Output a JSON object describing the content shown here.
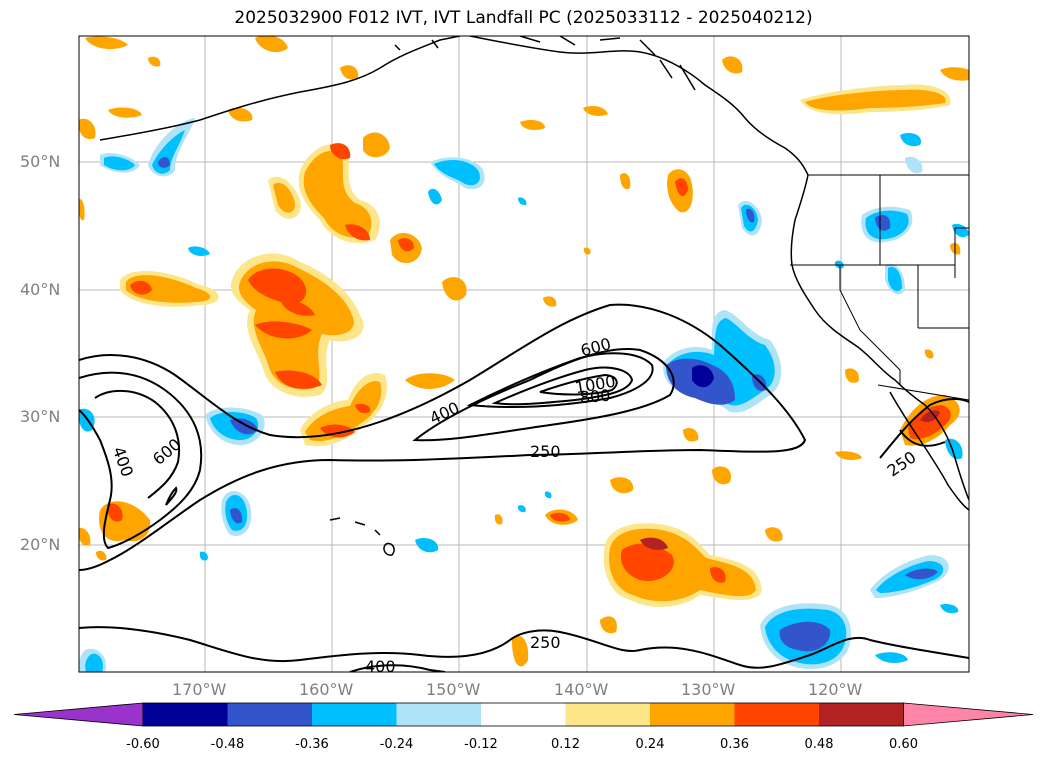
{
  "title": "2025032900 F012 IVT, IVT Landfall PC (2025033112 - 2025040212)",
  "lat_ticks": [
    "50°N",
    "40°N",
    "30°N",
    "20°N"
  ],
  "lon_ticks": [
    "170°W",
    "160°W",
    "150°W",
    "140°W",
    "130°W",
    "120°W"
  ],
  "colorbar": {
    "colors": [
      "#9933cc",
      "#000099",
      "#3355cc",
      "#00bfff",
      "#aee3f8",
      "#ffffff",
      "#fde68a",
      "#ffa500",
      "#ff4500",
      "#b22222",
      "#ff85a8"
    ],
    "labels": [
      "-0.60",
      "-0.48",
      "-0.36",
      "-0.24",
      "-0.12",
      "0.12",
      "0.24",
      "0.36",
      "0.48",
      "0.60"
    ]
  },
  "contour_labels": [
    "400",
    "600",
    "1000",
    "800",
    "600",
    "400",
    "250",
    "250",
    "250",
    "400"
  ]
}
